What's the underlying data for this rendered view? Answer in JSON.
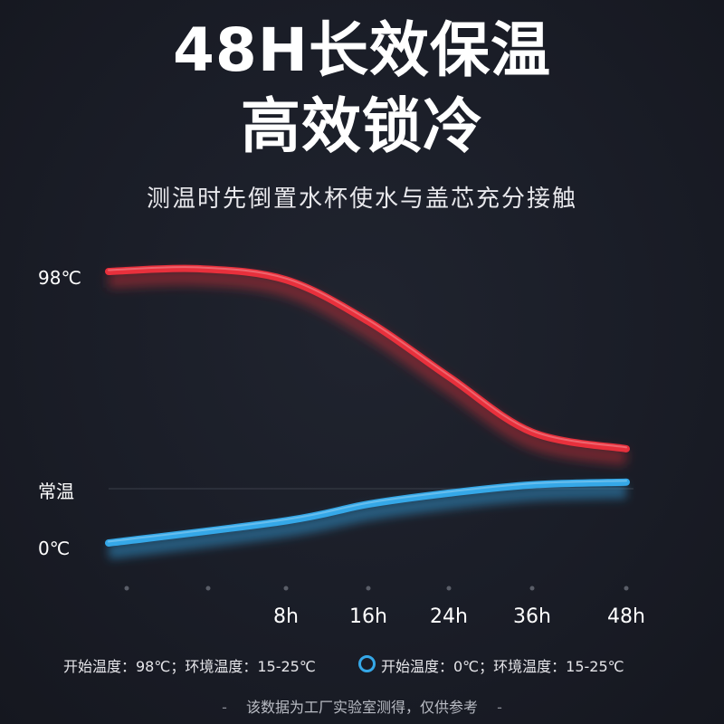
{
  "header": {
    "title_line1": "48H长效保温",
    "title_line2": "高效锁冷",
    "subtitle": "测温时先倒置水杯使水与盖芯充分接触"
  },
  "chart_data": {
    "type": "line",
    "y_labels": [
      "98℃",
      "常温",
      "0℃"
    ],
    "x_ticks": [
      "8h",
      "16h",
      "24h",
      "36h",
      "48h"
    ],
    "series": [
      {
        "kind": "hot",
        "color": "#e8303c",
        "points": [
          [
            0,
            98
          ],
          [
            4,
            99
          ],
          [
            8,
            95
          ],
          [
            16,
            80
          ],
          [
            24,
            60
          ],
          [
            36,
            40
          ],
          [
            48,
            34
          ]
        ]
      },
      {
        "kind": "cold",
        "color": "#35a8e8",
        "points": [
          [
            0,
            0
          ],
          [
            8,
            8
          ],
          [
            16,
            14
          ],
          [
            24,
            18
          ],
          [
            36,
            21
          ],
          [
            48,
            22
          ]
        ]
      }
    ],
    "reference_line": "常温",
    "grid": false
  },
  "legend": {
    "hot_text": "开始温度：98℃；环境温度：15-25℃",
    "cold_text": "开始温度：0℃；环境温度：15-25℃",
    "hot_color": "#e8303c",
    "cold_color": "#35a8e8"
  },
  "footer": {
    "dash": "-",
    "note": "该数据为工厂实验室测得，仅供参考"
  }
}
